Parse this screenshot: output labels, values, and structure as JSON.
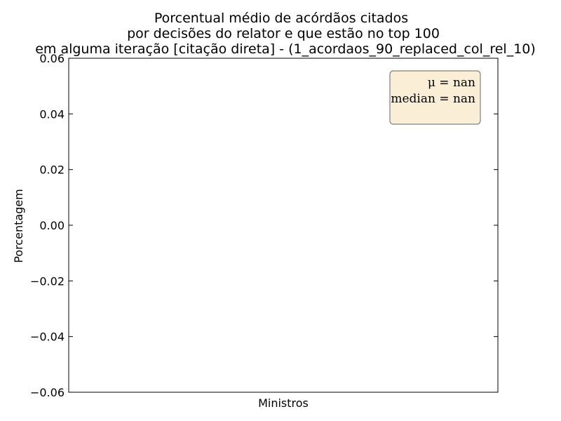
{
  "chart_data": {
    "type": "bar",
    "title_lines": [
      "Porcentual médio de acórdãos citados",
      "por decisões do relator e que estão no top 100",
      "em alguma iteração [citação direta] - (1_acordaos_90_replaced_col_rel_10)"
    ],
    "xlabel": "Ministros",
    "ylabel": "Porcentagem",
    "ylim": [
      -0.06,
      0.06
    ],
    "yticks": [
      -0.06,
      -0.04,
      -0.02,
      0.0,
      0.02,
      0.04,
      0.06
    ],
    "ytick_labels": [
      "−0.06",
      "−0.04",
      "−0.02",
      "0.00",
      "0.02",
      "0.04",
      "0.06"
    ],
    "categories": [],
    "values": [],
    "grid": false,
    "annotation": {
      "placement": "top-right",
      "lines": [
        "μ = nan",
        "median = nan"
      ],
      "box_fill": "#fbeed7",
      "box_stroke": "#808080"
    }
  }
}
